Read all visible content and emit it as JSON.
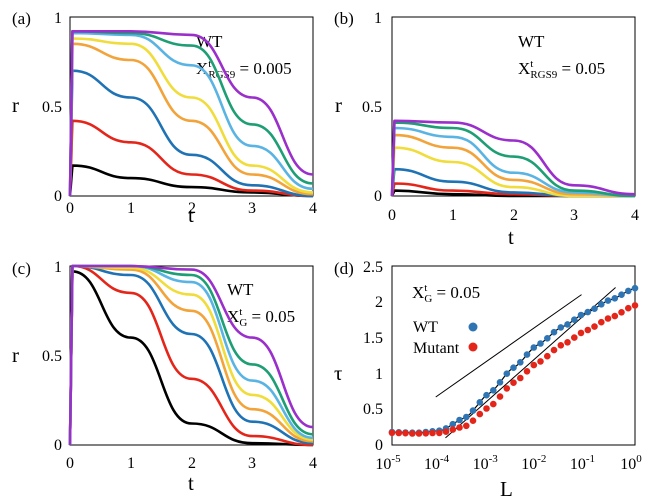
{
  "colors": {
    "purple": "#9a2fcb",
    "green": "#1e9e74",
    "skyblue": "#5ab4e3",
    "orange": "#f2a33a",
    "yellow": "#f0dc3a",
    "blue": "#1f73b5",
    "red": "#e4261a",
    "black": "#000000",
    "wt_marker": "#2f75b4",
    "mutant_marker": "#e4261a"
  },
  "chart_data": [
    {
      "type": "line",
      "panel_label": "(a)",
      "xlabel": "t",
      "ylabel": "r",
      "xlim": [
        0,
        4
      ],
      "ylim": [
        0,
        1
      ],
      "xticks": [
        "0",
        "1",
        "2",
        "3",
        "4"
      ],
      "yticks": [
        "0",
        "0.5",
        "1"
      ],
      "annotation_line1": "WT",
      "annotation_main": "X",
      "annotation_sup": "t",
      "annotation_sub": "RGS9",
      "annotation_value": " = 0.005",
      "series": [
        {
          "color": "black",
          "values": [
            0.17,
            0.1,
            0.05,
            0.02,
            0.0
          ]
        },
        {
          "color": "red",
          "values": [
            0.42,
            0.3,
            0.12,
            0.03,
            0.0
          ]
        },
        {
          "color": "blue",
          "values": [
            0.7,
            0.55,
            0.23,
            0.06,
            0.0
          ]
        },
        {
          "color": "orange",
          "values": [
            0.85,
            0.76,
            0.42,
            0.12,
            0.01
          ]
        },
        {
          "color": "yellow",
          "values": [
            0.88,
            0.85,
            0.55,
            0.17,
            0.02
          ]
        },
        {
          "color": "skyblue",
          "values": [
            0.91,
            0.9,
            0.73,
            0.28,
            0.04
          ]
        },
        {
          "color": "green",
          "values": [
            0.92,
            0.91,
            0.84,
            0.4,
            0.07
          ]
        },
        {
          "color": "purple",
          "values": [
            0.92,
            0.92,
            0.9,
            0.55,
            0.12
          ]
        }
      ]
    },
    {
      "type": "line",
      "panel_label": "(b)",
      "xlabel": "t",
      "ylabel": "r",
      "xlim": [
        0,
        4
      ],
      "ylim": [
        0,
        1
      ],
      "xticks": [
        "0",
        "1",
        "2",
        "3",
        "4"
      ],
      "yticks": [
        "0",
        "0.5",
        "1"
      ],
      "annotation_line1": "WT",
      "annotation_main": "X",
      "annotation_sup": "t",
      "annotation_sub": "RGS9",
      "annotation_value": " = 0.05",
      "series": [
        {
          "color": "black",
          "values": [
            0.03,
            0.01,
            0.0,
            0.0,
            0.0
          ]
        },
        {
          "color": "red",
          "values": [
            0.07,
            0.03,
            0.01,
            0.0,
            0.0
          ]
        },
        {
          "color": "blue",
          "values": [
            0.15,
            0.08,
            0.02,
            0.0,
            0.0
          ]
        },
        {
          "color": "yellow",
          "values": [
            0.27,
            0.19,
            0.05,
            0.0,
            0.0
          ]
        },
        {
          "color": "orange",
          "values": [
            0.34,
            0.27,
            0.09,
            0.01,
            0.0
          ]
        },
        {
          "color": "skyblue",
          "values": [
            0.38,
            0.33,
            0.13,
            0.02,
            0.0
          ]
        },
        {
          "color": "green",
          "values": [
            0.41,
            0.38,
            0.22,
            0.03,
            0.0
          ]
        },
        {
          "color": "purple",
          "values": [
            0.42,
            0.41,
            0.31,
            0.06,
            0.01
          ]
        }
      ]
    },
    {
      "type": "line",
      "panel_label": "(c)",
      "xlabel": "t",
      "ylabel": "r",
      "xlim": [
        0,
        4
      ],
      "ylim": [
        0,
        1
      ],
      "xticks": [
        "0",
        "1",
        "2",
        "3",
        "4"
      ],
      "yticks": [
        "0",
        "0.5",
        "1"
      ],
      "annotation_line1": "WT",
      "annotation_main": "X",
      "annotation_sup": "t",
      "annotation_sub": "G",
      "annotation_value": " = 0.05",
      "series": [
        {
          "color": "black",
          "values": [
            0.97,
            0.6,
            0.12,
            0.01,
            0.0
          ]
        },
        {
          "color": "red",
          "values": [
            1.0,
            0.85,
            0.37,
            0.05,
            0.0
          ]
        },
        {
          "color": "blue",
          "values": [
            1.0,
            0.95,
            0.62,
            0.13,
            0.01
          ]
        },
        {
          "color": "orange",
          "values": [
            1.0,
            0.98,
            0.75,
            0.2,
            0.02
          ]
        },
        {
          "color": "yellow",
          "values": [
            1.0,
            0.99,
            0.84,
            0.28,
            0.03
          ]
        },
        {
          "color": "skyblue",
          "values": [
            1.0,
            1.0,
            0.91,
            0.36,
            0.04
          ]
        },
        {
          "color": "green",
          "values": [
            1.0,
            1.0,
            0.95,
            0.45,
            0.06
          ]
        },
        {
          "color": "purple",
          "values": [
            1.0,
            1.0,
            0.98,
            0.6,
            0.1
          ]
        }
      ]
    },
    {
      "type": "scatter",
      "panel_label": "(d)",
      "xlabel": "L",
      "ylabel": "τ",
      "xscale": "log",
      "x_exponent_range": [
        -5,
        0
      ],
      "ylim": [
        0,
        2.5
      ],
      "xtick_base": "10",
      "xtick_exponents": [
        "-5",
        "-4",
        "-3",
        "-2",
        "-1",
        "0"
      ],
      "yticks": [
        "0",
        "0.5",
        "1",
        "1.5",
        "2",
        "2.5"
      ],
      "annotation_main": "X",
      "annotation_sup": "t",
      "annotation_sub": "G",
      "annotation_value": " = 0.05",
      "legend": [
        {
          "label": "WT",
          "color": "wt_marker"
        },
        {
          "label": "Mutant",
          "color": "mutant_marker"
        }
      ],
      "series": [
        {
          "name": "WT",
          "color": "wt_marker",
          "log10_x": [
            -5.0,
            -4.5,
            -4.0,
            -3.5,
            -3.0,
            -2.5,
            -2.0,
            -1.5,
            -1.0,
            -0.5,
            0.0
          ],
          "y": [
            0.18,
            0.17,
            0.2,
            0.38,
            0.72,
            1.08,
            1.4,
            1.65,
            1.85,
            2.03,
            2.19
          ]
        },
        {
          "name": "Mutant",
          "color": "mutant_marker",
          "log10_x": [
            -5.0,
            -4.5,
            -4.0,
            -3.5,
            -3.0,
            -2.5,
            -2.0,
            -1.5,
            -1.0,
            -0.5,
            0.0
          ],
          "y": [
            0.17,
            0.16,
            0.17,
            0.26,
            0.53,
            0.87,
            1.15,
            1.4,
            1.6,
            1.78,
            1.95
          ]
        }
      ],
      "fit_lines": [
        {
          "log10_x": [
            -3.9,
            -0.4
          ],
          "y": [
            0.1,
            2.2
          ]
        },
        {
          "log10_x": [
            -4.1,
            -1.1
          ],
          "y": [
            0.67,
            2.1
          ]
        }
      ]
    }
  ]
}
